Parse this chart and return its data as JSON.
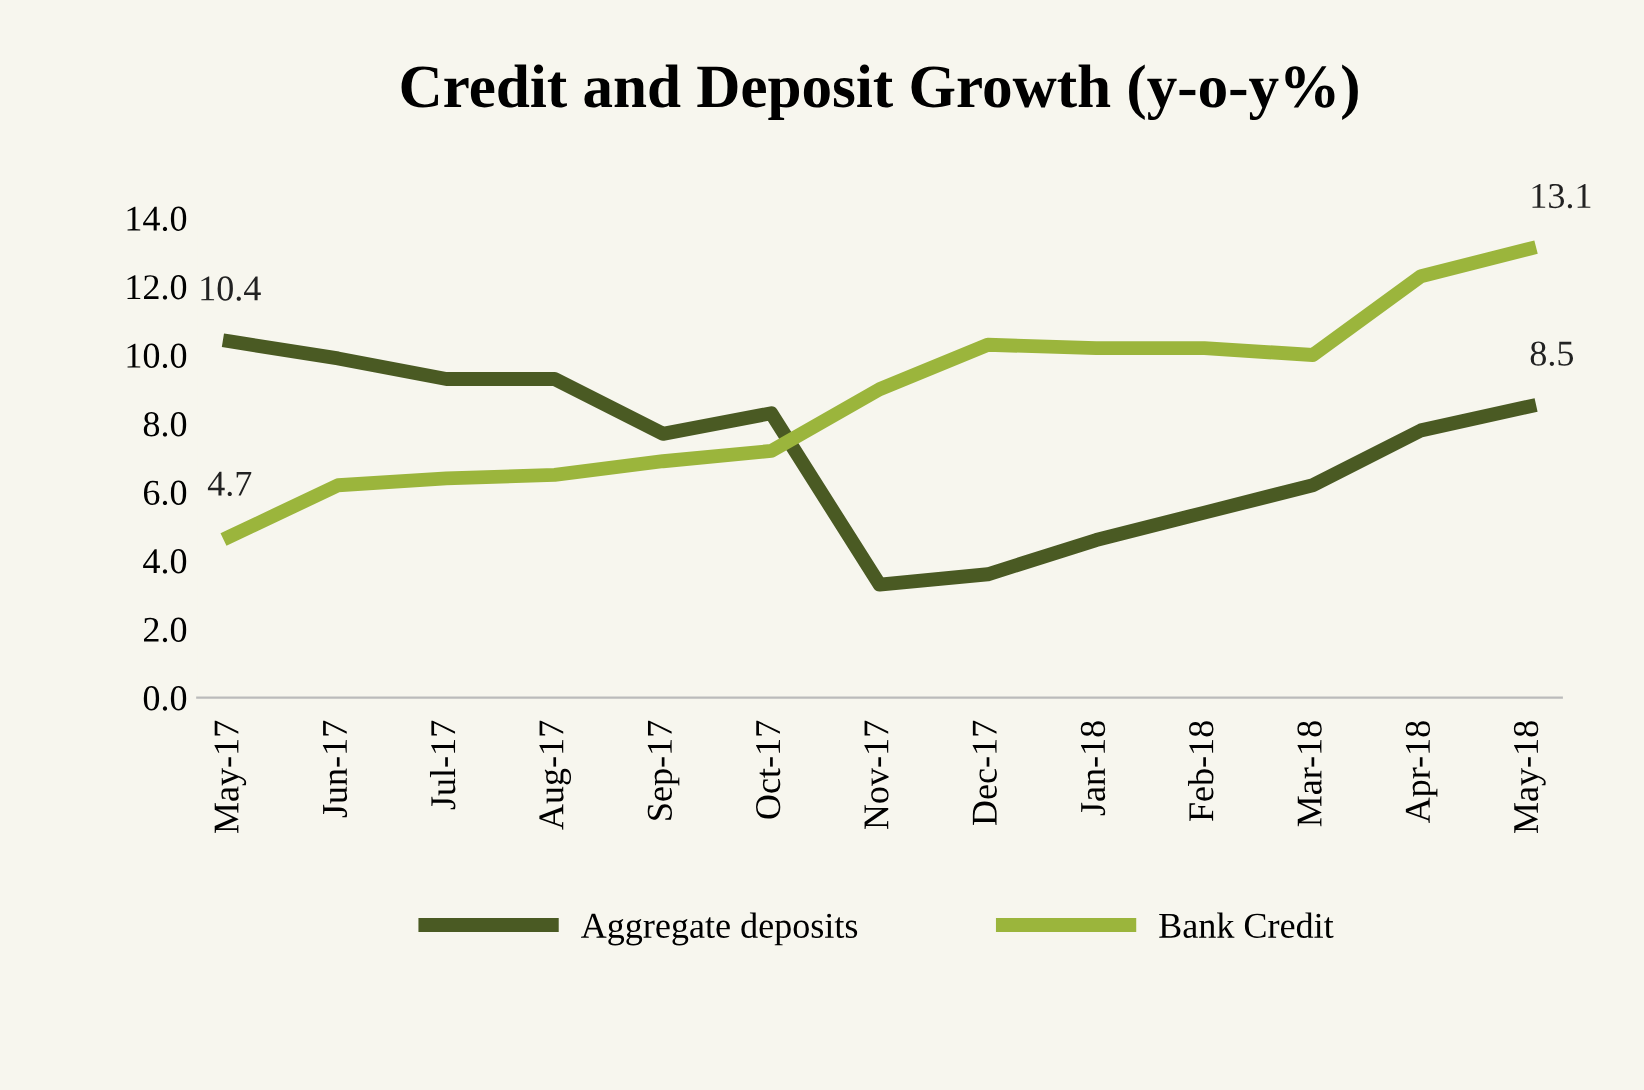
{
  "chart_data": {
    "type": "line",
    "title": "Credit and Deposit Growth (y-o-y%)",
    "categories": [
      "May-17",
      "Jun-17",
      "Jul-17",
      "Aug-17",
      "Sep-17",
      "Oct-17",
      "Nov-17",
      "Dec-17",
      "Jan-18",
      "Feb-18",
      "Mar-18",
      "Apr-18",
      "May-18"
    ],
    "series": [
      {
        "name": "Aggregate deposits",
        "color": "#4a5a23",
        "values": [
          10.4,
          9.9,
          9.3,
          9.3,
          7.7,
          8.3,
          3.3,
          3.6,
          4.6,
          5.4,
          6.2,
          7.8,
          8.5
        ],
        "value_labels": [
          "10.4",
          null,
          null,
          null,
          null,
          null,
          null,
          null,
          null,
          null,
          null,
          null,
          "8.5"
        ]
      },
      {
        "name": "Bank Credit",
        "color": "#9bb53c",
        "values": [
          4.7,
          6.2,
          6.4,
          6.5,
          6.9,
          7.2,
          9.0,
          10.3,
          10.2,
          10.2,
          10.0,
          12.3,
          13.1
        ],
        "value_labels": [
          "4.7",
          null,
          null,
          null,
          null,
          null,
          null,
          null,
          null,
          null,
          null,
          null,
          "13.1"
        ]
      }
    ],
    "ylim": [
      0,
      14
    ],
    "yticks": [
      {
        "value": 0,
        "label": "0.0"
      },
      {
        "value": 2,
        "label": "2.0"
      },
      {
        "value": 4,
        "label": "4.0"
      },
      {
        "value": 6,
        "label": "6.0"
      },
      {
        "value": 8,
        "label": "8.0"
      },
      {
        "value": 10,
        "label": "10.0"
      },
      {
        "value": 12,
        "label": "12.0"
      },
      {
        "value": 14,
        "label": "14.0"
      }
    ],
    "grid": false,
    "legend": "bottom",
    "marker": "none",
    "line_style": "solid"
  }
}
